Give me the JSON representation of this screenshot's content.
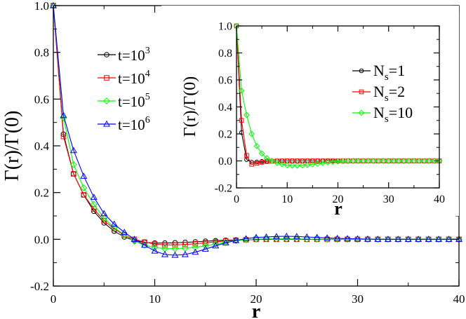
{
  "chart_data": [
    {
      "type": "line",
      "title": "",
      "xlabel": "r",
      "ylabel": "Γ(r)/Γ(0)",
      "xlim": [
        0,
        40
      ],
      "ylim": [
        -0.2,
        1.0
      ],
      "x_ticks": [
        "0",
        "10",
        "20",
        "30",
        "40"
      ],
      "y_ticks": [
        "-0.2",
        "0.0",
        "0.2",
        "0.4",
        "0.6",
        "0.8",
        "1.0"
      ],
      "legend_position": "upper-middle",
      "series": [
        {
          "name": "t=10^3",
          "label_base": "t=10",
          "label_sup": "3",
          "color": "#000000",
          "marker": "circle",
          "x": [
            0,
            1,
            2,
            3,
            4,
            5,
            6,
            7,
            8,
            9,
            10,
            11,
            12,
            13,
            14,
            15,
            16,
            17,
            18,
            19,
            20,
            21,
            22,
            23,
            24,
            25,
            26,
            27,
            28,
            29,
            30,
            31,
            32,
            33,
            34,
            35,
            36,
            37,
            38,
            39,
            40
          ],
          "y": [
            1.0,
            0.45,
            0.28,
            0.19,
            0.12,
            0.07,
            0.035,
            0.01,
            -0.005,
            -0.013,
            -0.016,
            -0.016,
            -0.015,
            -0.013,
            -0.011,
            -0.008,
            -0.006,
            -0.004,
            -0.003,
            -0.002,
            -0.001,
            0,
            0,
            0,
            0,
            0,
            0,
            0,
            0,
            0,
            0,
            0,
            0,
            0,
            0,
            0,
            0,
            0,
            0,
            0,
            0
          ]
        },
        {
          "name": "t=10^4",
          "label_base": "t=10",
          "label_sup": "4",
          "color": "#ff0000",
          "marker": "square",
          "x": [
            0,
            1,
            2,
            3,
            4,
            5,
            6,
            7,
            8,
            9,
            10,
            11,
            12,
            13,
            14,
            15,
            16,
            17,
            18,
            19,
            20,
            21,
            22,
            23,
            24,
            25,
            26,
            27,
            28,
            29,
            30,
            31,
            32,
            33,
            34,
            35,
            36,
            37,
            38,
            39,
            40
          ],
          "y": [
            1.0,
            0.44,
            0.28,
            0.19,
            0.13,
            0.08,
            0.045,
            0.018,
            0.0,
            -0.012,
            -0.02,
            -0.024,
            -0.024,
            -0.022,
            -0.019,
            -0.015,
            -0.011,
            -0.007,
            -0.004,
            -0.002,
            0,
            0,
            0,
            0,
            0,
            0,
            0,
            0,
            0,
            0,
            0,
            0,
            0,
            0,
            0,
            0,
            0,
            0,
            0,
            0,
            0
          ]
        },
        {
          "name": "t=10^5",
          "label_base": "t=10",
          "label_sup": "5",
          "color": "#00ff00",
          "marker": "diamond",
          "x": [
            0,
            1,
            2,
            3,
            4,
            5,
            6,
            7,
            8,
            9,
            10,
            11,
            12,
            13,
            14,
            15,
            16,
            17,
            18,
            19,
            20,
            21,
            22,
            23,
            24,
            25,
            26,
            27,
            28,
            29,
            30,
            31,
            32,
            33,
            34,
            35,
            36,
            37,
            38,
            39,
            40
          ],
          "y": [
            1.0,
            0.52,
            0.32,
            0.22,
            0.15,
            0.09,
            0.05,
            0.02,
            -0.008,
            -0.025,
            -0.035,
            -0.04,
            -0.04,
            -0.038,
            -0.034,
            -0.028,
            -0.021,
            -0.013,
            -0.006,
            -0.002,
            0.001,
            0.002,
            0.002,
            0.002,
            0.002,
            0.001,
            0.001,
            0,
            0,
            0,
            0,
            0,
            0,
            0,
            0,
            0,
            0,
            0,
            0,
            0,
            0
          ]
        },
        {
          "name": "t=10^6",
          "label_base": "t=10",
          "label_sup": "6",
          "color": "#0000ff",
          "marker": "triangle",
          "x": [
            0,
            1,
            2,
            3,
            4,
            5,
            6,
            7,
            8,
            9,
            10,
            11,
            12,
            13,
            14,
            15,
            16,
            17,
            18,
            19,
            20,
            21,
            22,
            23,
            24,
            25,
            26,
            27,
            28,
            29,
            30,
            31,
            32,
            33,
            34,
            35,
            36,
            37,
            38,
            39,
            40
          ],
          "y": [
            1.0,
            0.53,
            0.38,
            0.27,
            0.18,
            0.11,
            0.065,
            0.03,
            0.0,
            -0.025,
            -0.05,
            -0.065,
            -0.068,
            -0.065,
            -0.055,
            -0.042,
            -0.028,
            -0.015,
            -0.005,
            0.003,
            0.008,
            0.01,
            0.012,
            0.013,
            0.012,
            0.01,
            0.008,
            0.006,
            0.004,
            0.003,
            0.002,
            0.001,
            0,
            0,
            0,
            0,
            0,
            0,
            0,
            0,
            0
          ]
        }
      ]
    },
    {
      "type": "line",
      "title": "",
      "xlabel": "r",
      "ylabel": "Γ(r)/Γ(0)",
      "xlim": [
        0,
        40
      ],
      "ylim": [
        -0.2,
        1.0
      ],
      "x_ticks": [
        "0",
        "10",
        "20",
        "30",
        "40"
      ],
      "y_ticks": [
        "-0.2",
        "0.0",
        "0.2",
        "0.4",
        "0.6",
        "0.8",
        "1.0"
      ],
      "legend_position": "right",
      "series": [
        {
          "name": "N_s=1",
          "label_base": "N",
          "label_sub": "s",
          "label_rest": "=1",
          "color": "#000000",
          "marker": "circle",
          "x": [
            0,
            1,
            2,
            3,
            4,
            5,
            6,
            7,
            8,
            9,
            10,
            11,
            12,
            13,
            14,
            15,
            16,
            17,
            18,
            19,
            20,
            21,
            22,
            23,
            24,
            25,
            26,
            27,
            28,
            29,
            30,
            31,
            32,
            33,
            34,
            35,
            36,
            37,
            38,
            39,
            40
          ],
          "y": [
            1.0,
            0.21,
            0.01,
            -0.01,
            -0.008,
            -0.004,
            -0.002,
            -0.001,
            0,
            0,
            0,
            0,
            0,
            0,
            0,
            0,
            0,
            0,
            0,
            0,
            0,
            0,
            0,
            0,
            0,
            0,
            0,
            0,
            0,
            0,
            0,
            0,
            0,
            0,
            0,
            0,
            0,
            0,
            0,
            0,
            0
          ]
        },
        {
          "name": "N_s=2",
          "label_base": "N",
          "label_sub": "s",
          "label_rest": "=2",
          "color": "#ff0000",
          "marker": "square",
          "x": [
            0,
            1,
            2,
            3,
            4,
            5,
            6,
            7,
            8,
            9,
            10,
            11,
            12,
            13,
            14,
            15,
            16,
            17,
            18,
            19,
            20,
            21,
            22,
            23,
            24,
            25,
            26,
            27,
            28,
            29,
            30,
            31,
            32,
            33,
            34,
            35,
            36,
            37,
            38,
            39,
            40
          ],
          "y": [
            1.0,
            0.3,
            0.04,
            -0.025,
            -0.018,
            -0.01,
            -0.004,
            -0.002,
            -0.001,
            0,
            0,
            0,
            0,
            0,
            0,
            0,
            0,
            0,
            0,
            0,
            0,
            0,
            0,
            0,
            0,
            0,
            0,
            0,
            0,
            0,
            0,
            0,
            0,
            0,
            0,
            0,
            0,
            0,
            0,
            0,
            0
          ]
        },
        {
          "name": "N_s=10",
          "label_base": "N",
          "label_sub": "s",
          "label_rest": "=10",
          "color": "#00ff00",
          "marker": "diamond",
          "x": [
            0,
            1,
            2,
            3,
            4,
            5,
            6,
            7,
            8,
            9,
            10,
            11,
            12,
            13,
            14,
            15,
            16,
            17,
            18,
            19,
            20,
            21,
            22,
            23,
            24,
            25,
            26,
            27,
            28,
            29,
            30,
            31,
            32,
            33,
            34,
            35,
            36,
            37,
            38,
            39,
            40
          ],
          "y": [
            1.0,
            0.52,
            0.34,
            0.2,
            0.11,
            0.055,
            0.02,
            0.0,
            -0.015,
            -0.025,
            -0.032,
            -0.035,
            -0.035,
            -0.033,
            -0.03,
            -0.026,
            -0.021,
            -0.016,
            -0.011,
            -0.007,
            -0.004,
            -0.002,
            -0.001,
            0,
            0,
            0,
            0,
            0,
            0,
            0,
            0,
            0,
            0,
            0,
            0,
            0,
            0,
            0,
            0,
            0,
            0
          ]
        }
      ]
    }
  ]
}
